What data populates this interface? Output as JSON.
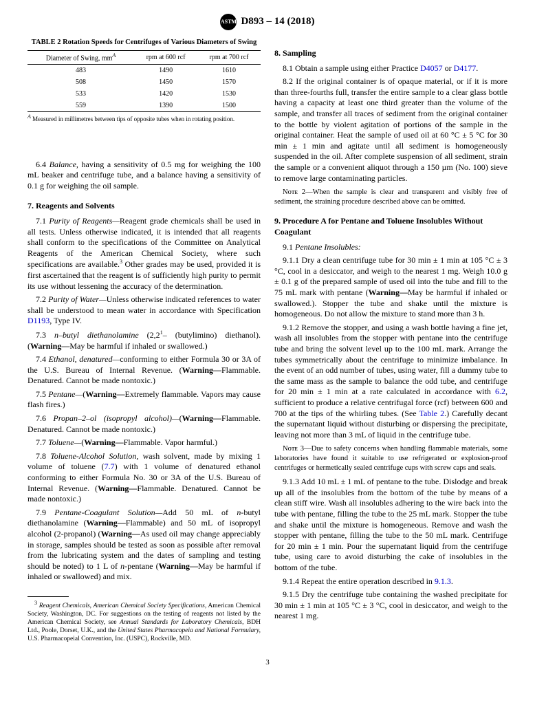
{
  "header": {
    "designation": "D893 – 14 (2018)",
    "logo": "ASTM"
  },
  "table2": {
    "title": "TABLE 2 Rotation Speeds for Centrifuges of Various Diameters of Swing",
    "headers": [
      "Diameter of Swing, mm",
      "rpm at 600 rcf",
      "rpm at 700 rcf"
    ],
    "rows": [
      [
        "483",
        "1490",
        "1610"
      ],
      [
        "508",
        "1450",
        "1570"
      ],
      [
        "533",
        "1420",
        "1530"
      ],
      [
        "559",
        "1390",
        "1500"
      ]
    ],
    "footnote_super": "A",
    "footnote": " Measured in millimetres between tips of opposite tubes when in rotating position."
  },
  "p6_4": {
    "num": "6.4 ",
    "label": "Balance,",
    "text": " having a sensitivity of 0.5 mg for weighing the 100 mL beaker and centrifuge tube, and a balance having a sensitivity of 0.1 g for weighing the oil sample."
  },
  "s7": {
    "heading": "7. Reagents and Solvents"
  },
  "p7_1": {
    "num": "7.1 ",
    "label": "Purity of Reagents—",
    "text1": "Reagent grade chemicals shall be used in all tests. Unless otherwise indicated, it is intended that all reagents shall conform to the specifications of the Committee on Analytical Reagents of the American Chemical Society, where such specifications are available.",
    "sup": "3",
    "text2": " Other grades may be used, provided it is first ascertained that the reagent is of sufficiently high purity to permit its use without lessening the accuracy of the determination."
  },
  "p7_2": {
    "num": "7.2 ",
    "label": "Purity of Water—",
    "text1": "Unless otherwise indicated references to water shall be understood to mean water in accordance with Specification ",
    "link": "D1193",
    "text2": ", Type IV."
  },
  "p7_3": {
    "num": "7.3 ",
    "label": "n–butyl diethanolamine",
    "text1": " (2,2",
    "sup": "1",
    "text2": "– (butylimino) diethanol). (",
    "warn": "Warning—",
    "text3": "May be harmful if inhaled or swallowed.)"
  },
  "p7_4": {
    "num": "7.4 ",
    "label": "Ethanol, denatured—",
    "text1": "conforming to either Formula 30 or 3A of the U.S. Bureau of Internal Revenue. (",
    "warn": "Warning—",
    "text2": "Flammable. Denatured. Cannot be made nontoxic.)"
  },
  "p7_5": {
    "num": "7.5 ",
    "label": "Pentane—",
    "text1": "(",
    "warn": "Warning—",
    "text2": "Extremely flammable. Vapors may cause flash fires.)"
  },
  "p7_6": {
    "num": "7.6 ",
    "label": "Propan–2–ol (isopropyl alcohol)—",
    "text1": "(",
    "warn": "Warning—",
    "text2": "Flammable. Denatured. Cannot be made nontoxic.)"
  },
  "p7_7": {
    "num": "7.7 ",
    "label": "Toluene—",
    "text1": "(",
    "warn": "Warning—",
    "text2": "Flammable. Vapor harmful.)"
  },
  "p7_8": {
    "num": "7.8 ",
    "label": "Toluene-Alcohol Solution,",
    "text1": " wash solvent, made by mixing 1 volume of toluene (",
    "link": "7.7",
    "text2": ") with 1 volume of denatured ethanol conforming to either Formula No. 30 or 3A of the U.S. Bureau of Internal Revenue. (",
    "warn": "Warning—",
    "text3": "Flammable. Denatured. Cannot be made nontoxic.)"
  },
  "p7_9": {
    "num": "7.9 ",
    "label": "Pentane-Coagulant Solution—",
    "text1": "Add 50 mL of ",
    "n": "n",
    "text2": "-butyl diethanolamine (",
    "warn1": "Warning—",
    "text3": "Flammable) and 50 mL of isopropyl alcohol (2-propanol) (",
    "warn2": "Warning—",
    "text4": "As used oil may change appreciably in storage, samples should be tested as soon as possible after removal from the lubricating system and the dates of sampling and testing should be noted) to 1 L of ",
    "n2": "n",
    "text5": "-pentane (",
    "warn3": "Warning—",
    "text6": "May be harmful if inhaled or swallowed) and mix."
  },
  "footnote3": {
    "sup": "3",
    "text1": " Reagent Chemicals, American Chemical Society Specifications,",
    "text2": " American Chemical Society, Washington, DC. For suggestions on the testing of reagents not listed by the American Chemical Society, see ",
    "text3": "Annual Standards for Laboratory Chemicals,",
    "text4": " BDH Ltd., Poole, Dorset, U.K., and the ",
    "text5": "United States Pharmacopeia and National Formulary,",
    "text6": " U.S. Pharmacopeial Convention, Inc. (USPC), Rockville, MD."
  },
  "s8": {
    "heading": "8. Sampling"
  },
  "p8_1": {
    "num": "8.1 ",
    "text1": "Obtain a sample using either Practice ",
    "link1": "D4057",
    "text2": " or ",
    "link2": "D4177",
    "text3": "."
  },
  "p8_2": {
    "num": "8.2 ",
    "text": "If the original container is of opaque material, or if it is more than three-fourths full, transfer the entire sample to a clear glass bottle having a capacity at least one third greater than the volume of the sample, and transfer all traces of sediment from the original container to the bottle by violent agitation of portions of the sample in the original container. Heat the sample of used oil at 60 °C ± 5 °C for 30 min ± 1 min and agitate until all sediment is homogeneously suspended in the oil. After complete suspension of all sediment, strain the sample or a convenient aliquot through a 150 µm (No. 100) sieve to remove large contaminating particles."
  },
  "note2": {
    "label": "Nᴏᴛᴇ 2—",
    "text": "When the sample is clear and transparent and visibly free of sediment, the straining procedure described above can be omitted."
  },
  "s9": {
    "heading": "9. Procedure A for Pentane and Toluene Insolubles Without Coagulant"
  },
  "p9_1": {
    "num": "9.1 ",
    "label": "Pentane Insolubles:"
  },
  "p9_1_1": {
    "num": "9.1.1 ",
    "text1": "Dry a clean centrifuge tube for 30 min ± 1 min at 105 °C ± 3 °C, cool in a desiccator, and weigh to the nearest 1 mg. Weigh 10.0 g ± 0.1 g of the prepared sample of used oil into the tube and fill to the 75 mL mark with pentane (",
    "warn": "Warning—",
    "text2": "May be harmful if inhaled or swallowed.). Stopper the tube and shake until the mixture is homogeneous. Do not allow the mixture to stand more than 3 h."
  },
  "p9_1_2": {
    "num": "9.1.2 ",
    "text1": "Remove the stopper, and using a wash bottle having a fine jet, wash all insolubles from the stopper with pentane into the centrifuge tube and bring the solvent level up to the 100 mL mark. Arrange the tubes symmetrically about the centrifuge to minimize imbalance. In the event of an odd number of tubes, using water, fill a dummy tube to the same mass as the sample to balance the odd tube, and centrifuge for 20 min ± 1 min at a rate calculated in accordance with ",
    "link1": "6.2",
    "text2": ", sufficient to produce a relative centrifugal force (rcf) between 600 and 700 at the tips of the whirling tubes. (See ",
    "link2": "Table 2",
    "text3": ".) Carefully decant the supernatant liquid without disturbing or dispersing the precipitate, leaving not more than 3 mL of liquid in the centrifuge tube."
  },
  "note3": {
    "label": "Nᴏᴛᴇ 3—",
    "text": "Due to safety concerns when handling flammable materials, some laboratories have found it suitable to use refrigerated or explosion-proof centrifuges or hermetically sealed centrifuge cups with screw caps and seals."
  },
  "p9_1_3": {
    "num": "9.1.3 ",
    "text": "Add 10 mL ± 1 mL of pentane to the tube. Dislodge and break up all of the insolubles from the bottom of the tube by means of a clean stiff wire. Wash all insolubles adhering to the wire back into the tube with pentane, filling the tube to the 25 mL mark. Stopper the tube and shake until the mixture is homogeneous. Remove and wash the stopper with pentane, filling the tube to the 50 mL mark. Centrifuge for 20 min ± 1 min. Pour the supernatant liquid from the centrifuge tube, using care to avoid disturbing the cake of insolubles in the bottom of the tube."
  },
  "p9_1_4": {
    "num": "9.1.4 ",
    "text1": "Repeat the entire operation described in ",
    "link": "9.1.3",
    "text2": "."
  },
  "p9_1_5": {
    "num": "9.1.5 ",
    "text": "Dry the centrifuge tube containing the washed precipitate for 30 min ± 1 min at 105 °C ± 3 °C, cool in desiccator, and weigh to the nearest 1 mg."
  },
  "page": "3"
}
